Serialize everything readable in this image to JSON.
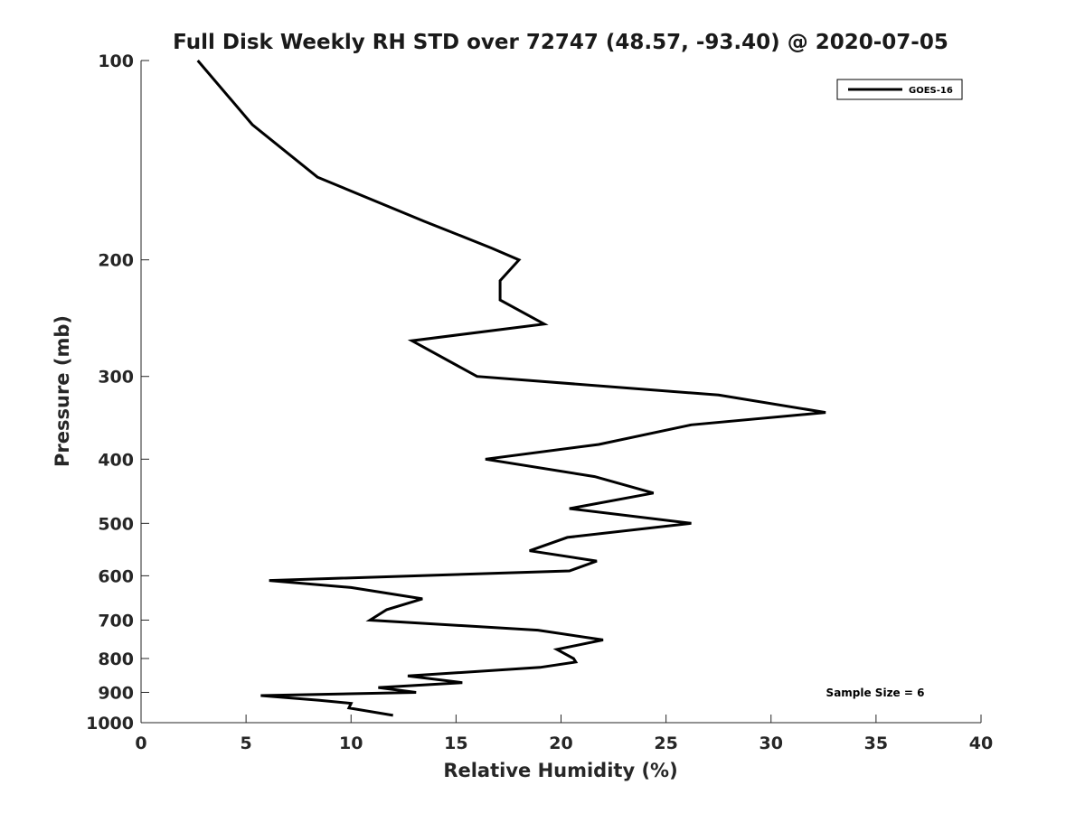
{
  "chart_data": {
    "type": "line",
    "title": "Full Disk Weekly RH STD over 72747 (48.57, -93.40) @ 2020-07-05",
    "xlabel": "Relative Humidity (%)",
    "ylabel": "Pressure (mb)",
    "xlim": [
      0,
      40
    ],
    "ylim": [
      100,
      1000
    ],
    "yscale": "log",
    "yreversed": true,
    "x_ticks": [
      "0",
      "5",
      "10",
      "15",
      "20",
      "25",
      "30",
      "35",
      "40"
    ],
    "y_ticks": [
      "100",
      "200",
      "300",
      "400",
      "500",
      "600",
      "700",
      "800",
      "900",
      "1000"
    ],
    "grid": false,
    "legend_position": "top-right",
    "annotation": "Sample Size = 6",
    "series": [
      {
        "name": "GOES-16",
        "color": "#000000",
        "points": [
          [
            2.7,
            100
          ],
          [
            5.3,
            125
          ],
          [
            8.4,
            150
          ],
          [
            13.5,
            175
          ],
          [
            16.7,
            192
          ],
          [
            18.0,
            200
          ],
          [
            17.1,
            215
          ],
          [
            17.1,
            230
          ],
          [
            19.2,
            250
          ],
          [
            12.9,
            265
          ],
          [
            16.0,
            300
          ],
          [
            27.5,
            320
          ],
          [
            32.6,
            340
          ],
          [
            26.2,
            355
          ],
          [
            21.8,
            380
          ],
          [
            16.4,
            400
          ],
          [
            21.6,
            425
          ],
          [
            24.4,
            450
          ],
          [
            20.4,
            475
          ],
          [
            26.2,
            500
          ],
          [
            20.3,
            525
          ],
          [
            18.5,
            550
          ],
          [
            21.7,
            570
          ],
          [
            20.4,
            590
          ],
          [
            6.1,
            610
          ],
          [
            10.0,
            625
          ],
          [
            13.4,
            650
          ],
          [
            11.7,
            675
          ],
          [
            10.9,
            700
          ],
          [
            18.9,
            725
          ],
          [
            22.0,
            750
          ],
          [
            19.8,
            775
          ],
          [
            20.6,
            800
          ],
          [
            20.7,
            810
          ],
          [
            19.0,
            825
          ],
          [
            12.7,
            850
          ],
          [
            15.3,
            870
          ],
          [
            11.3,
            885
          ],
          [
            13.1,
            900
          ],
          [
            5.7,
            910
          ],
          [
            8.5,
            925
          ],
          [
            10.0,
            935
          ],
          [
            9.9,
            950
          ],
          [
            12.0,
            975
          ]
        ]
      }
    ]
  }
}
